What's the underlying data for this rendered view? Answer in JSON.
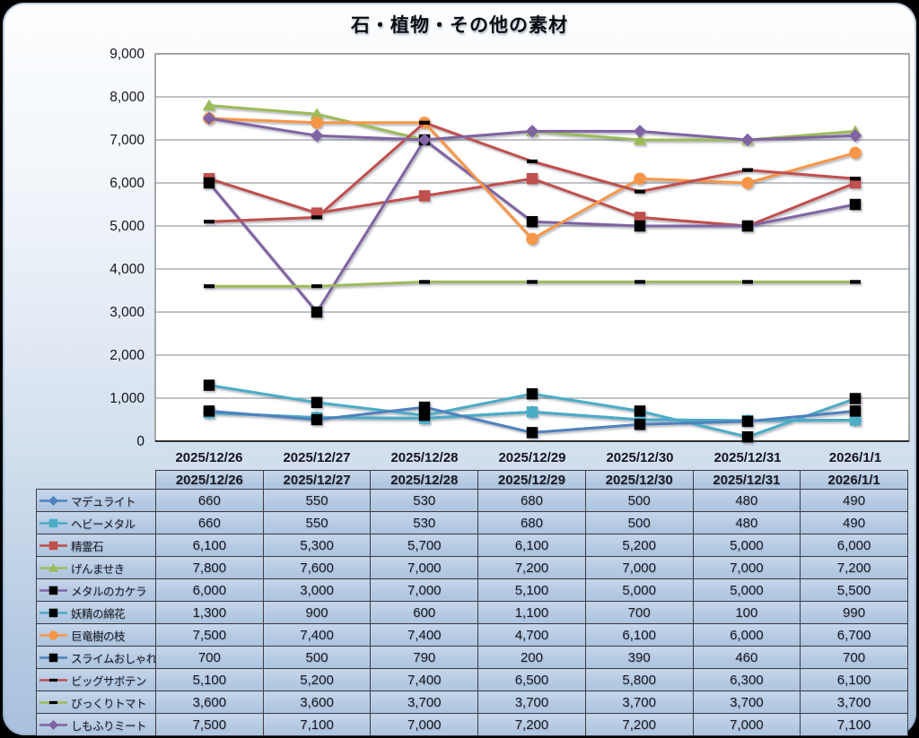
{
  "chart_data": {
    "type": "line",
    "title": "石・植物・その他の素材",
    "x": [
      "2025/12/26",
      "2025/12/27",
      "2025/12/28",
      "2025/12/29",
      "2025/12/30",
      "2025/12/31",
      "2026/1/1"
    ],
    "ylim": [
      0,
      9000
    ],
    "ytick_step": 1000,
    "grid": true,
    "legend_position": "table-left-column",
    "series": [
      {
        "name": "マデュライト",
        "color": "#4F81BD",
        "marker": "diamond",
        "marker_color": "#4F81BD",
        "values": [
          660,
          550,
          530,
          680,
          500,
          480,
          490
        ]
      },
      {
        "name": "ヘビーメタル",
        "color": "#4BACC6",
        "marker": "square",
        "marker_color": "#4BACC6",
        "values": [
          660,
          550,
          530,
          680,
          500,
          480,
          490
        ]
      },
      {
        "name": "精霊石",
        "color": "#C0504D",
        "marker": "square",
        "marker_color": "#C0504D",
        "values": [
          6100,
          5300,
          5700,
          6100,
          5200,
          5000,
          6000
        ]
      },
      {
        "name": "げんませき",
        "color": "#9BBB59",
        "marker": "triangle",
        "marker_color": "#9BBB59",
        "values": [
          7800,
          7600,
          7000,
          7200,
          7000,
          7000,
          7200
        ]
      },
      {
        "name": "メタルのカケラ",
        "color": "#8064A2",
        "marker": "square",
        "marker_color": "#000000",
        "values": [
          6000,
          3000,
          7000,
          5100,
          5000,
          5000,
          5500
        ]
      },
      {
        "name": "妖精の綿花",
        "color": "#4BACC6",
        "marker": "square",
        "marker_color": "#000000",
        "values": [
          1300,
          900,
          600,
          1100,
          700,
          100,
          990
        ]
      },
      {
        "name": "巨竜樹の枝",
        "color": "#F79646",
        "marker": "circle",
        "marker_color": "#F79646",
        "values": [
          7500,
          7400,
          7400,
          4700,
          6100,
          6000,
          6700
        ]
      },
      {
        "name": "スライムおしゃれ花",
        "color": "#4F81BD",
        "marker": "square",
        "marker_color": "#000000",
        "values": [
          700,
          500,
          790,
          200,
          390,
          460,
          700
        ]
      },
      {
        "name": "ビッグサボテン",
        "color": "#C0504D",
        "marker": "dash",
        "marker_color": "#000000",
        "values": [
          5100,
          5200,
          7400,
          6500,
          5800,
          6300,
          6100
        ]
      },
      {
        "name": "びっくりトマト",
        "color": "#9BBB59",
        "marker": "dash",
        "marker_color": "#000000",
        "values": [
          3600,
          3600,
          3700,
          3700,
          3700,
          3700,
          3700
        ]
      },
      {
        "name": "しもふりミート",
        "color": "#8064A2",
        "marker": "diamond",
        "marker_color": "#8064A2",
        "values": [
          7500,
          7100,
          7000,
          7200,
          7200,
          7000,
          7100
        ]
      }
    ]
  },
  "table": {
    "header_row_is_dates": true,
    "number_format": "thousands-comma"
  }
}
